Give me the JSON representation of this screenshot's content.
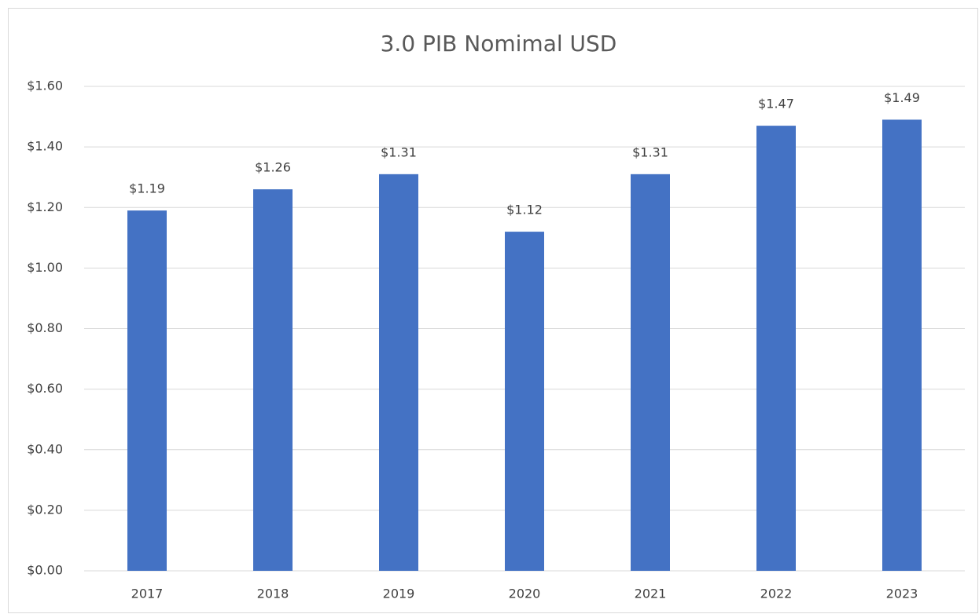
{
  "chart_data": {
    "type": "bar",
    "title": "3.0 PIB Nomimal USD",
    "categories": [
      "2017",
      "2018",
      "2019",
      "2020",
      "2021",
      "2022",
      "2023"
    ],
    "values": [
      1.19,
      1.26,
      1.31,
      1.12,
      1.31,
      1.47,
      1.49
    ],
    "value_labels": [
      "$1.19",
      "$1.26",
      "$1.31",
      "$1.12",
      "$1.31",
      "$1.47",
      "$1.49"
    ],
    "color": "#4472c4",
    "ylim": [
      0,
      1.6
    ],
    "yticks": [
      {
        "value": 0,
        "label": "$0.00"
      },
      {
        "value": 0.2,
        "label": "$0.20"
      },
      {
        "value": 0.4,
        "label": "$0.40"
      },
      {
        "value": 0.6,
        "label": "$0.60"
      },
      {
        "value": 0.8,
        "label": "$0.80"
      },
      {
        "value": 1.0,
        "label": "$1.00"
      },
      {
        "value": 1.2,
        "label": "$1.20"
      },
      {
        "value": 1.4,
        "label": "$1.40"
      },
      {
        "value": 1.6,
        "label": "$1.60"
      }
    ],
    "grid": true
  }
}
